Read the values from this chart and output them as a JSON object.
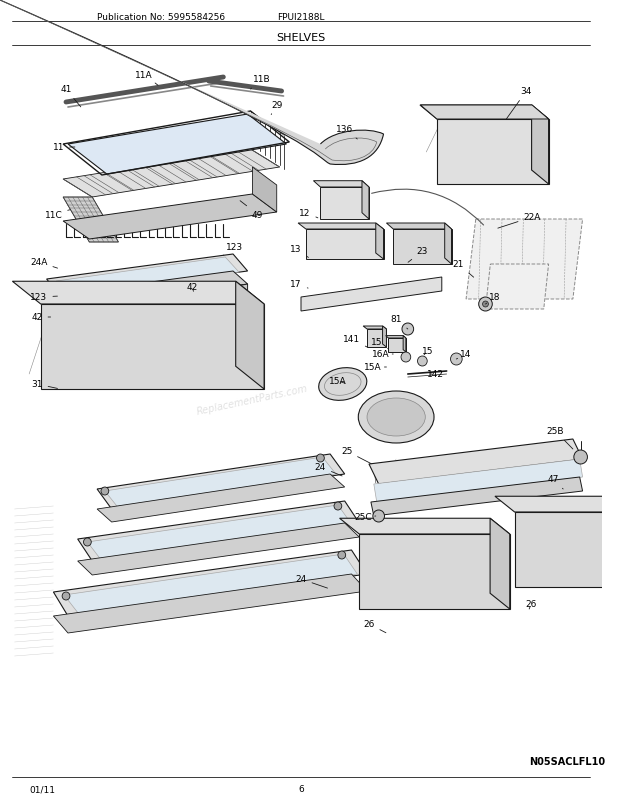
{
  "title": "SHELVES",
  "pub_no": "Publication No: 5995584256",
  "model": "FPUI2188L",
  "date": "01/11",
  "page": "6",
  "diagram_code": "N05SACLFL10",
  "bg_color": "#ffffff",
  "line_color": "#1a1a1a",
  "text_color": "#000000",
  "watermark": "ReplacementParts.com"
}
